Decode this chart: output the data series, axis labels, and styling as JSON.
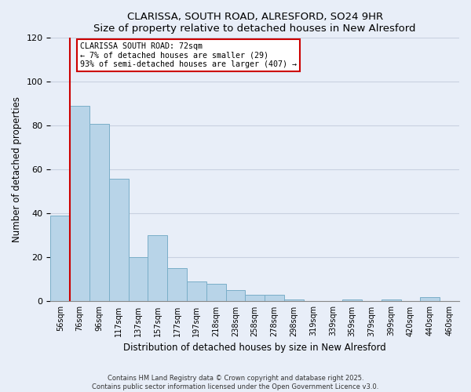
{
  "title": "CLARISSA, SOUTH ROAD, ALRESFORD, SO24 9HR",
  "subtitle": "Size of property relative to detached houses in New Alresford",
  "xlabel": "Distribution of detached houses by size in New Alresford",
  "ylabel": "Number of detached properties",
  "categories": [
    "56sqm",
    "76sqm",
    "96sqm",
    "117sqm",
    "137sqm",
    "157sqm",
    "177sqm",
    "197sqm",
    "218sqm",
    "238sqm",
    "258sqm",
    "278sqm",
    "298sqm",
    "319sqm",
    "339sqm",
    "359sqm",
    "379sqm",
    "399sqm",
    "420sqm",
    "440sqm",
    "460sqm"
  ],
  "values": [
    39,
    89,
    81,
    56,
    20,
    30,
    15,
    9,
    8,
    5,
    3,
    3,
    1,
    0,
    0,
    1,
    0,
    1,
    0,
    2,
    0
  ],
  "bar_color": "#b8d4e8",
  "bar_edge_color": "#7aaec8",
  "vline_color": "#cc0000",
  "annotation_title": "CLARISSA SOUTH ROAD: 72sqm",
  "annotation_line1": "← 7% of detached houses are smaller (29)",
  "annotation_line2": "93% of semi-detached houses are larger (407) →",
  "annotation_box_color": "#ffffff",
  "annotation_border_color": "#cc0000",
  "ylim": [
    0,
    120
  ],
  "yticks": [
    0,
    20,
    40,
    60,
    80,
    100,
    120
  ],
  "footer1": "Contains HM Land Registry data © Crown copyright and database right 2025.",
  "footer2": "Contains public sector information licensed under the Open Government Licence v3.0.",
  "background_color": "#e8eef8",
  "plot_bg_color": "#e8eef8",
  "grid_color": "#c8d0e0"
}
